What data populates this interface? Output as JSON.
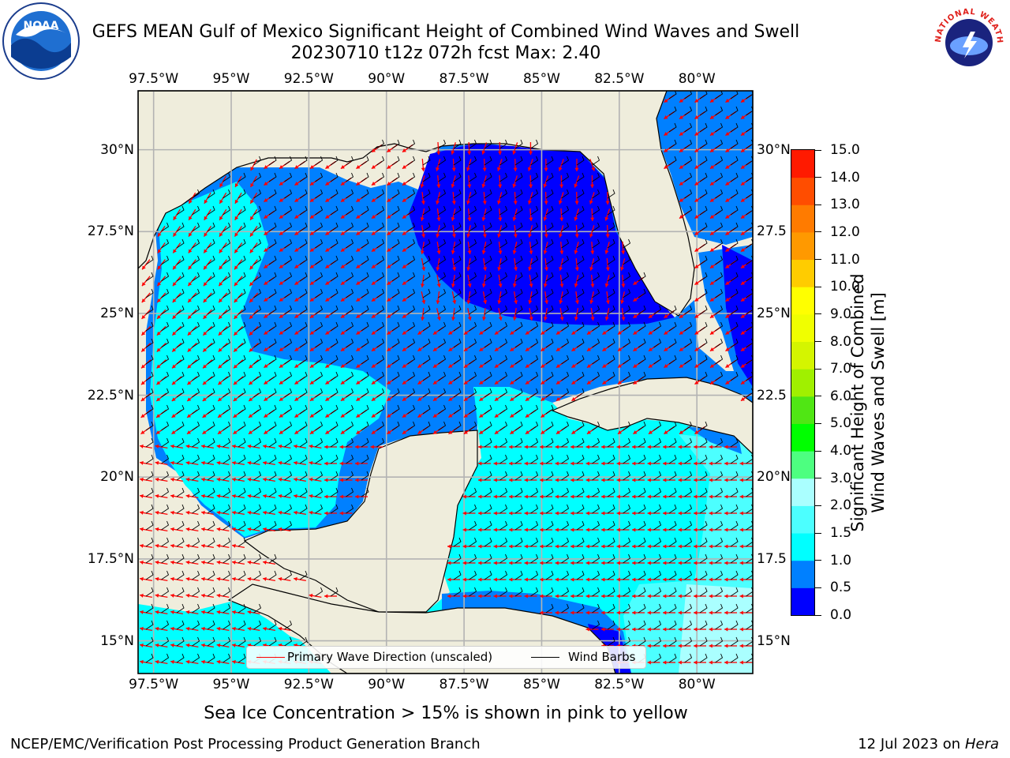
{
  "title": {
    "line1": "GEFS MEAN Gulf of Mexico Significant Height of Combined Wind Waves and Swell",
    "line2": "20230710 t12z 072h fcst   Max: 2.40"
  },
  "logos": {
    "noaa": "NOAA",
    "nws": "NATIONAL WEATHER SERVICE"
  },
  "map": {
    "lon_range": [
      -98.0,
      -78.2
    ],
    "lat_range": [
      14.0,
      31.8
    ],
    "lon_ticks": [
      "97.5°W",
      "95°W",
      "92.5°W",
      "90°W",
      "87.5°W",
      "85°W",
      "82.5°W",
      "80°W"
    ],
    "lat_ticks": [
      "30°N",
      "27.5°N",
      "25°N",
      "22.5°N",
      "20°N",
      "17.5°N",
      "15°N"
    ],
    "lat_ticks_right": [
      "30°N",
      "27.5",
      "25°N",
      "22.5",
      "20°N",
      "17.5",
      "15°N"
    ],
    "colors": {
      "land": "#efeddc",
      "grid": "#b3b3b3",
      "coast": "#000000",
      "arrow": "#ff0000",
      "barb": "#000000"
    }
  },
  "colorbar": {
    "label_line1": "Significant Height of Combined",
    "label_line2": "Wind Waves and Swell [m]",
    "ticks": [
      "0.0",
      "0.5",
      "1.0",
      "1.5",
      "2.0",
      "3.0",
      "4.0",
      "5.0",
      "6.0",
      "7.0",
      "8.0",
      "9.0",
      "10.0",
      "11.0",
      "12.0",
      "13.0",
      "14.0",
      "15.0"
    ],
    "colors": [
      "#0000ff",
      "#0080ff",
      "#00ffff",
      "#4cffff",
      "#aaffff",
      "#4dff80",
      "#00ff00",
      "#50e614",
      "#a0f000",
      "#d4f500",
      "#f0ff00",
      "#ffff00",
      "#ffcc00",
      "#ff9900",
      "#ff7b00",
      "#ff4d00",
      "#ff1a00"
    ]
  },
  "legend": {
    "wave_label": "Primary Wave Direction (unscaled)",
    "barb_label": "Wind Barbs"
  },
  "note": "Sea Ice Concentration > 15% is shown in pink to yellow",
  "footer": {
    "left": "NCEP/EMC/Verification Post Processing Product Generation Branch",
    "right_date": "12 Jul 2023 on",
    "right_host": "Hera"
  }
}
